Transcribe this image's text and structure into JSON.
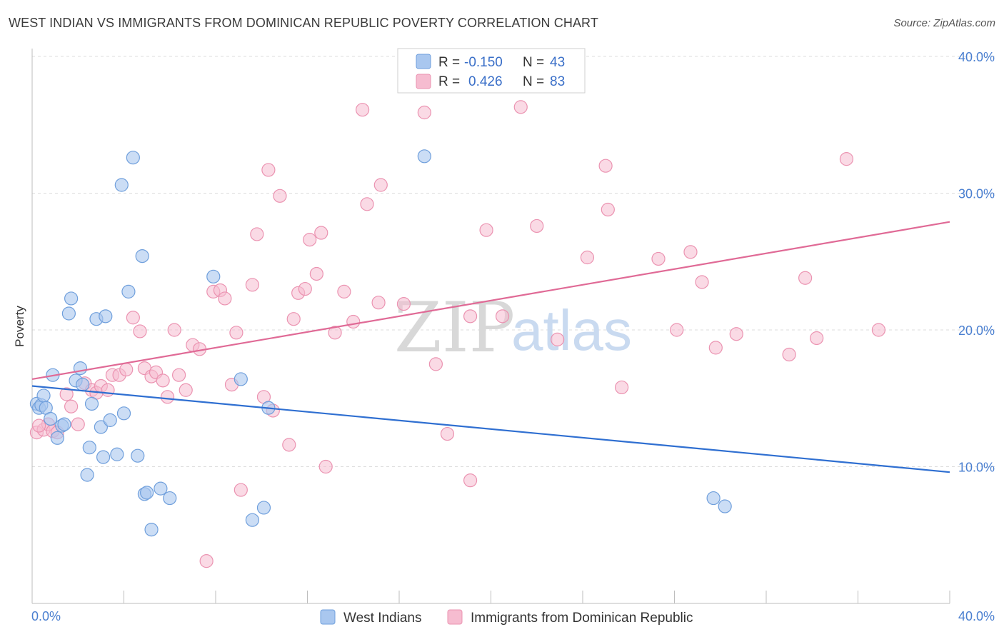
{
  "title": "WEST INDIAN VS IMMIGRANTS FROM DOMINICAN REPUBLIC POVERTY CORRELATION CHART",
  "source": "Source: ZipAtlas.com",
  "watermark": {
    "zip": "ZIP",
    "atlas": "atlas"
  },
  "colors": {
    "blue_fill": "#a9c7ef",
    "blue_stroke": "#6f9fdc",
    "blue_line": "#2f6fd1",
    "pink_fill": "#f6bcd0",
    "pink_stroke": "#eb93b1",
    "pink_line": "#e06a96",
    "grid": "#dcdcdc",
    "axis_label": "#4a7fd0"
  },
  "legend": {
    "rows": [
      {
        "r_label": "R =",
        "r_value": "-0.150",
        "n_label": "N =",
        "n_value": "43"
      },
      {
        "r_label": "R =",
        "r_value": "0.426",
        "n_label": "N =",
        "n_value": "83"
      }
    ]
  },
  "bottom_legend": [
    "West Indians",
    "Immigrants from Dominican Republic"
  ],
  "chart_data": {
    "type": "scatter",
    "title": "WEST INDIAN VS IMMIGRANTS FROM DOMINICAN REPUBLIC POVERTY CORRELATION CHART",
    "xlabel": "",
    "ylabel": "Poverty",
    "xlim": [
      0,
      40
    ],
    "ylim": [
      0,
      40
    ],
    "x_tick_labels": [
      "0.0%",
      "40.0%"
    ],
    "y_ticks": [
      10,
      20,
      30,
      40
    ],
    "y_tick_labels": [
      "10.0%",
      "20.0%",
      "30.0%",
      "40.0%"
    ],
    "grid": true,
    "series": [
      {
        "name": "West Indians",
        "r": -0.15,
        "n": 43,
        "trend": {
          "x0": 0,
          "y0": 15.9,
          "x1": 40,
          "y1": 9.6
        },
        "points": [
          [
            0.2,
            14.6
          ],
          [
            0.3,
            14.3
          ],
          [
            0.4,
            14.5
          ],
          [
            0.5,
            15.2
          ],
          [
            0.6,
            14.3
          ],
          [
            0.8,
            13.5
          ],
          [
            0.9,
            16.7
          ],
          [
            1.1,
            12.1
          ],
          [
            1.3,
            13.0
          ],
          [
            1.4,
            13.1
          ],
          [
            1.6,
            21.2
          ],
          [
            1.7,
            22.3
          ],
          [
            1.9,
            16.3
          ],
          [
            2.1,
            17.2
          ],
          [
            2.2,
            16.0
          ],
          [
            2.4,
            9.4
          ],
          [
            2.5,
            11.4
          ],
          [
            2.6,
            14.6
          ],
          [
            2.8,
            20.8
          ],
          [
            3.0,
            12.9
          ],
          [
            3.1,
            10.7
          ],
          [
            3.2,
            21.0
          ],
          [
            3.4,
            13.4
          ],
          [
            3.7,
            10.9
          ],
          [
            3.9,
            30.6
          ],
          [
            4.0,
            13.9
          ],
          [
            4.2,
            22.8
          ],
          [
            4.4,
            32.6
          ],
          [
            4.6,
            10.8
          ],
          [
            4.8,
            25.4
          ],
          [
            4.9,
            8.0
          ],
          [
            5.0,
            8.1
          ],
          [
            5.2,
            5.4
          ],
          [
            5.6,
            8.4
          ],
          [
            6.0,
            7.7
          ],
          [
            7.9,
            23.9
          ],
          [
            9.1,
            16.4
          ],
          [
            9.6,
            6.1
          ],
          [
            10.1,
            7.0
          ],
          [
            10.3,
            14.3
          ],
          [
            17.1,
            32.7
          ],
          [
            29.7,
            7.7
          ],
          [
            30.2,
            7.1
          ]
        ]
      },
      {
        "name": "Immigrants from Dominican Republic",
        "r": 0.426,
        "n": 83,
        "trend": {
          "x0": 0,
          "y0": 16.4,
          "x1": 40,
          "y1": 27.9
        },
        "points": [
          [
            0.2,
            12.5
          ],
          [
            0.5,
            12.7
          ],
          [
            0.7,
            13.1
          ],
          [
            0.9,
            12.6
          ],
          [
            1.1,
            12.5
          ],
          [
            1.5,
            15.3
          ],
          [
            1.7,
            14.4
          ],
          [
            2.0,
            13.1
          ],
          [
            2.3,
            16.1
          ],
          [
            2.6,
            15.6
          ],
          [
            2.8,
            15.4
          ],
          [
            3.0,
            15.9
          ],
          [
            3.3,
            15.6
          ],
          [
            3.5,
            16.7
          ],
          [
            3.8,
            16.7
          ],
          [
            4.1,
            17.1
          ],
          [
            4.4,
            20.9
          ],
          [
            4.7,
            19.9
          ],
          [
            4.9,
            17.2
          ],
          [
            5.2,
            16.6
          ],
          [
            5.4,
            16.9
          ],
          [
            5.7,
            16.3
          ],
          [
            5.9,
            15.1
          ],
          [
            6.2,
            20.0
          ],
          [
            6.4,
            16.7
          ],
          [
            6.7,
            15.6
          ],
          [
            7.0,
            18.9
          ],
          [
            7.3,
            18.6
          ],
          [
            7.6,
            3.1
          ],
          [
            7.9,
            22.8
          ],
          [
            8.2,
            22.9
          ],
          [
            8.4,
            22.3
          ],
          [
            8.7,
            16.0
          ],
          [
            8.9,
            19.8
          ],
          [
            9.1,
            8.3
          ],
          [
            9.6,
            23.3
          ],
          [
            9.8,
            27.0
          ],
          [
            10.1,
            15.1
          ],
          [
            10.3,
            31.7
          ],
          [
            10.5,
            14.1
          ],
          [
            10.8,
            29.8
          ],
          [
            11.2,
            11.6
          ],
          [
            11.4,
            20.8
          ],
          [
            11.6,
            22.7
          ],
          [
            11.9,
            23.0
          ],
          [
            12.1,
            26.6
          ],
          [
            12.4,
            24.1
          ],
          [
            12.6,
            27.1
          ],
          [
            12.8,
            10.0
          ],
          [
            13.2,
            19.8
          ],
          [
            13.6,
            22.8
          ],
          [
            14.0,
            20.6
          ],
          [
            14.4,
            36.1
          ],
          [
            14.6,
            29.2
          ],
          [
            15.1,
            22.0
          ],
          [
            15.2,
            30.6
          ],
          [
            16.2,
            21.9
          ],
          [
            17.1,
            35.9
          ],
          [
            17.6,
            17.5
          ],
          [
            18.1,
            12.4
          ],
          [
            19.1,
            9.0
          ],
          [
            19.1,
            21.0
          ],
          [
            19.8,
            27.3
          ],
          [
            20.5,
            21.0
          ],
          [
            21.3,
            36.3
          ],
          [
            22.0,
            27.6
          ],
          [
            22.9,
            19.3
          ],
          [
            24.2,
            25.3
          ],
          [
            25.0,
            32.0
          ],
          [
            25.1,
            28.8
          ],
          [
            25.7,
            15.8
          ],
          [
            27.3,
            25.2
          ],
          [
            28.1,
            20.0
          ],
          [
            28.7,
            25.7
          ],
          [
            29.2,
            23.5
          ],
          [
            29.8,
            18.7
          ],
          [
            30.7,
            19.7
          ],
          [
            33.0,
            18.2
          ],
          [
            33.7,
            23.8
          ],
          [
            34.2,
            19.4
          ],
          [
            35.5,
            32.5
          ],
          [
            36.9,
            20.0
          ],
          [
            0.3,
            13.0
          ]
        ]
      }
    ]
  }
}
